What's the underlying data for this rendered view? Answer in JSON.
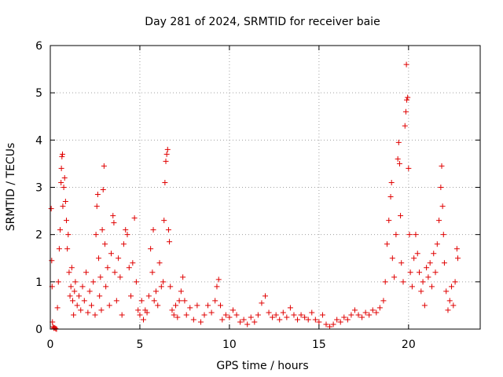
{
  "chart_data": {
    "type": "scatter",
    "title": "Day 281 of 2024, SRMTID for receiver baie",
    "xlabel": "GPS time / hours",
    "ylabel": "SRMTID / TECUs",
    "xlim": [
      0,
      24
    ],
    "ylim": [
      0,
      6
    ],
    "xticks": [
      0,
      5,
      10,
      15,
      20
    ],
    "xtick_labels": [
      "0",
      "5",
      "10",
      "15",
      "20"
    ],
    "yticks": [
      0,
      1,
      2,
      3,
      4,
      5,
      6
    ],
    "ytick_labels": [
      "0",
      "1",
      "2",
      "3",
      "4",
      "5",
      "6"
    ],
    "grid": true,
    "marker": "+",
    "marker_color": "#e00000",
    "series": [
      {
        "name": "SRMTID",
        "points": [
          [
            0.05,
            2.55
          ],
          [
            0.08,
            1.45
          ],
          [
            0.1,
            0.9
          ],
          [
            0.12,
            0.15
          ],
          [
            0.15,
            0.05
          ],
          [
            0.2,
            0.02
          ],
          [
            0.25,
            0.03
          ],
          [
            0.3,
            0.01
          ],
          [
            0.35,
            0.0
          ],
          [
            0.4,
            0.45
          ],
          [
            0.45,
            1.0
          ],
          [
            0.5,
            1.7
          ],
          [
            0.55,
            2.1
          ],
          [
            0.6,
            3.1
          ],
          [
            0.62,
            3.4
          ],
          [
            0.65,
            3.65
          ],
          [
            0.68,
            3.7
          ],
          [
            0.7,
            2.6
          ],
          [
            0.75,
            3.0
          ],
          [
            0.8,
            3.2
          ],
          [
            0.85,
            2.7
          ],
          [
            0.9,
            2.3
          ],
          [
            0.95,
            1.7
          ],
          [
            1.0,
            2.0
          ],
          [
            1.05,
            1.2
          ],
          [
            1.1,
            0.7
          ],
          [
            1.15,
            0.9
          ],
          [
            1.2,
            1.3
          ],
          [
            1.25,
            0.6
          ],
          [
            1.3,
            0.3
          ],
          [
            1.35,
            0.8
          ],
          [
            1.4,
            1.0
          ],
          [
            1.5,
            0.5
          ],
          [
            1.6,
            0.7
          ],
          [
            1.7,
            0.4
          ],
          [
            1.8,
            0.9
          ],
          [
            1.9,
            0.6
          ],
          [
            2.0,
            1.2
          ],
          [
            2.1,
            0.35
          ],
          [
            2.2,
            0.8
          ],
          [
            2.3,
            0.5
          ],
          [
            2.4,
            1.0
          ],
          [
            2.5,
            0.3
          ],
          [
            2.55,
            2.0
          ],
          [
            2.6,
            2.6
          ],
          [
            2.65,
            2.85
          ],
          [
            2.7,
            1.5
          ],
          [
            2.75,
            0.7
          ],
          [
            2.8,
            1.1
          ],
          [
            2.85,
            0.4
          ],
          [
            2.9,
            2.1
          ],
          [
            2.95,
            2.95
          ],
          [
            3.0,
            3.45
          ],
          [
            3.05,
            1.8
          ],
          [
            3.1,
            0.9
          ],
          [
            3.2,
            1.3
          ],
          [
            3.3,
            0.5
          ],
          [
            3.4,
            1.6
          ],
          [
            3.5,
            2.4
          ],
          [
            3.55,
            2.25
          ],
          [
            3.6,
            1.2
          ],
          [
            3.7,
            0.6
          ],
          [
            3.8,
            1.5
          ],
          [
            3.9,
            1.1
          ],
          [
            4.0,
            0.3
          ],
          [
            4.1,
            1.8
          ],
          [
            4.2,
            2.1
          ],
          [
            4.3,
            2.0
          ],
          [
            4.4,
            1.3
          ],
          [
            4.5,
            0.7
          ],
          [
            4.6,
            1.4
          ],
          [
            4.7,
            2.35
          ],
          [
            4.8,
            1.0
          ],
          [
            4.9,
            0.4
          ],
          [
            5.0,
            0.3
          ],
          [
            5.1,
            0.6
          ],
          [
            5.2,
            0.2
          ],
          [
            5.3,
            0.4
          ],
          [
            5.4,
            0.35
          ],
          [
            5.5,
            0.7
          ],
          [
            5.6,
            1.7
          ],
          [
            5.7,
            1.2
          ],
          [
            5.75,
            2.1
          ],
          [
            5.8,
            0.6
          ],
          [
            5.9,
            0.8
          ],
          [
            6.0,
            0.5
          ],
          [
            6.1,
            1.4
          ],
          [
            6.2,
            0.9
          ],
          [
            6.3,
            1.0
          ],
          [
            6.35,
            2.3
          ],
          [
            6.4,
            3.1
          ],
          [
            6.45,
            3.55
          ],
          [
            6.5,
            3.7
          ],
          [
            6.55,
            3.8
          ],
          [
            6.6,
            2.1
          ],
          [
            6.65,
            1.85
          ],
          [
            6.7,
            0.9
          ],
          [
            6.8,
            0.4
          ],
          [
            6.9,
            0.3
          ],
          [
            7.0,
            0.5
          ],
          [
            7.1,
            0.25
          ],
          [
            7.2,
            0.6
          ],
          [
            7.3,
            0.8
          ],
          [
            7.4,
            1.1
          ],
          [
            7.5,
            0.6
          ],
          [
            7.6,
            0.3
          ],
          [
            7.8,
            0.45
          ],
          [
            8.0,
            0.2
          ],
          [
            8.2,
            0.5
          ],
          [
            8.4,
            0.15
          ],
          [
            8.6,
            0.3
          ],
          [
            8.8,
            0.5
          ],
          [
            9.0,
            0.35
          ],
          [
            9.2,
            0.6
          ],
          [
            9.3,
            0.9
          ],
          [
            9.4,
            1.05
          ],
          [
            9.5,
            0.5
          ],
          [
            9.6,
            0.2
          ],
          [
            9.8,
            0.3
          ],
          [
            10.0,
            0.25
          ],
          [
            10.2,
            0.4
          ],
          [
            10.4,
            0.3
          ],
          [
            10.6,
            0.15
          ],
          [
            10.8,
            0.2
          ],
          [
            11.0,
            0.1
          ],
          [
            11.2,
            0.25
          ],
          [
            11.4,
            0.15
          ],
          [
            11.6,
            0.3
          ],
          [
            11.8,
            0.55
          ],
          [
            12.0,
            0.7
          ],
          [
            12.2,
            0.35
          ],
          [
            12.4,
            0.25
          ],
          [
            12.6,
            0.3
          ],
          [
            12.8,
            0.2
          ],
          [
            13.0,
            0.35
          ],
          [
            13.2,
            0.25
          ],
          [
            13.4,
            0.45
          ],
          [
            13.6,
            0.3
          ],
          [
            13.8,
            0.2
          ],
          [
            14.0,
            0.3
          ],
          [
            14.2,
            0.25
          ],
          [
            14.4,
            0.2
          ],
          [
            14.6,
            0.35
          ],
          [
            14.8,
            0.2
          ],
          [
            15.0,
            0.15
          ],
          [
            15.2,
            0.3
          ],
          [
            15.4,
            0.1
          ],
          [
            15.6,
            0.05
          ],
          [
            15.8,
            0.1
          ],
          [
            16.0,
            0.2
          ],
          [
            16.2,
            0.15
          ],
          [
            16.4,
            0.25
          ],
          [
            16.6,
            0.2
          ],
          [
            16.8,
            0.3
          ],
          [
            17.0,
            0.4
          ],
          [
            17.2,
            0.3
          ],
          [
            17.4,
            0.25
          ],
          [
            17.6,
            0.35
          ],
          [
            17.8,
            0.3
          ],
          [
            18.0,
            0.4
          ],
          [
            18.2,
            0.35
          ],
          [
            18.4,
            0.45
          ],
          [
            18.6,
            0.6
          ],
          [
            18.7,
            1.0
          ],
          [
            18.8,
            1.8
          ],
          [
            18.9,
            2.3
          ],
          [
            19.0,
            2.8
          ],
          [
            19.05,
            3.1
          ],
          [
            19.1,
            1.5
          ],
          [
            19.2,
            1.1
          ],
          [
            19.3,
            2.0
          ],
          [
            19.4,
            3.6
          ],
          [
            19.45,
            3.95
          ],
          [
            19.5,
            3.5
          ],
          [
            19.55,
            2.4
          ],
          [
            19.6,
            1.4
          ],
          [
            19.7,
            1.0
          ],
          [
            19.8,
            4.3
          ],
          [
            19.85,
            4.6
          ],
          [
            19.88,
            5.6
          ],
          [
            19.9,
            4.85
          ],
          [
            19.95,
            4.9
          ],
          [
            20.0,
            3.4
          ],
          [
            20.05,
            2.0
          ],
          [
            20.1,
            1.2
          ],
          [
            20.2,
            0.9
          ],
          [
            20.3,
            1.5
          ],
          [
            20.4,
            2.0
          ],
          [
            20.5,
            1.6
          ],
          [
            20.6,
            1.2
          ],
          [
            20.7,
            0.8
          ],
          [
            20.8,
            1.0
          ],
          [
            20.9,
            0.5
          ],
          [
            21.0,
            1.3
          ],
          [
            21.1,
            1.1
          ],
          [
            21.2,
            1.4
          ],
          [
            21.3,
            0.9
          ],
          [
            21.4,
            1.6
          ],
          [
            21.5,
            1.2
          ],
          [
            21.6,
            1.8
          ],
          [
            21.7,
            2.3
          ],
          [
            21.8,
            3.0
          ],
          [
            21.85,
            3.45
          ],
          [
            21.9,
            2.6
          ],
          [
            21.95,
            2.0
          ],
          [
            22.0,
            1.4
          ],
          [
            22.1,
            0.8
          ],
          [
            22.2,
            0.4
          ],
          [
            22.3,
            0.6
          ],
          [
            22.4,
            0.9
          ],
          [
            22.5,
            0.5
          ],
          [
            22.6,
            1.0
          ],
          [
            22.7,
            1.7
          ],
          [
            22.75,
            1.5
          ]
        ]
      }
    ]
  }
}
